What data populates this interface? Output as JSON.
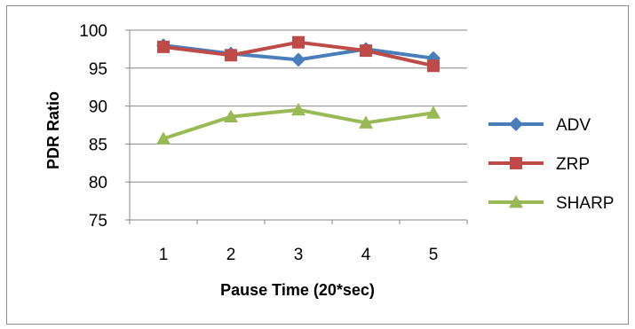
{
  "chart_data": {
    "type": "line",
    "title": "",
    "xlabel": "Pause Time (20*sec)",
    "ylabel": "PDR Ratio",
    "categories": [
      "1",
      "2",
      "3",
      "4",
      "5"
    ],
    "ylim": [
      75,
      100
    ],
    "yticks": [
      "75",
      "80",
      "85",
      "90",
      "95",
      "100"
    ],
    "grid": "horizontal",
    "legend_position": "right",
    "series": [
      {
        "name": "ADV",
        "values": [
          98.0,
          96.9,
          96.1,
          97.5,
          96.3
        ],
        "color": "#4a7ebb",
        "marker": "diamond"
      },
      {
        "name": "ZRP",
        "values": [
          97.8,
          96.7,
          98.4,
          97.3,
          95.3
        ],
        "color": "#be4b48",
        "marker": "square"
      },
      {
        "name": "SHARP",
        "values": [
          85.7,
          88.6,
          89.5,
          87.8,
          89.1
        ],
        "color": "#98b954",
        "marker": "triangle"
      }
    ]
  }
}
